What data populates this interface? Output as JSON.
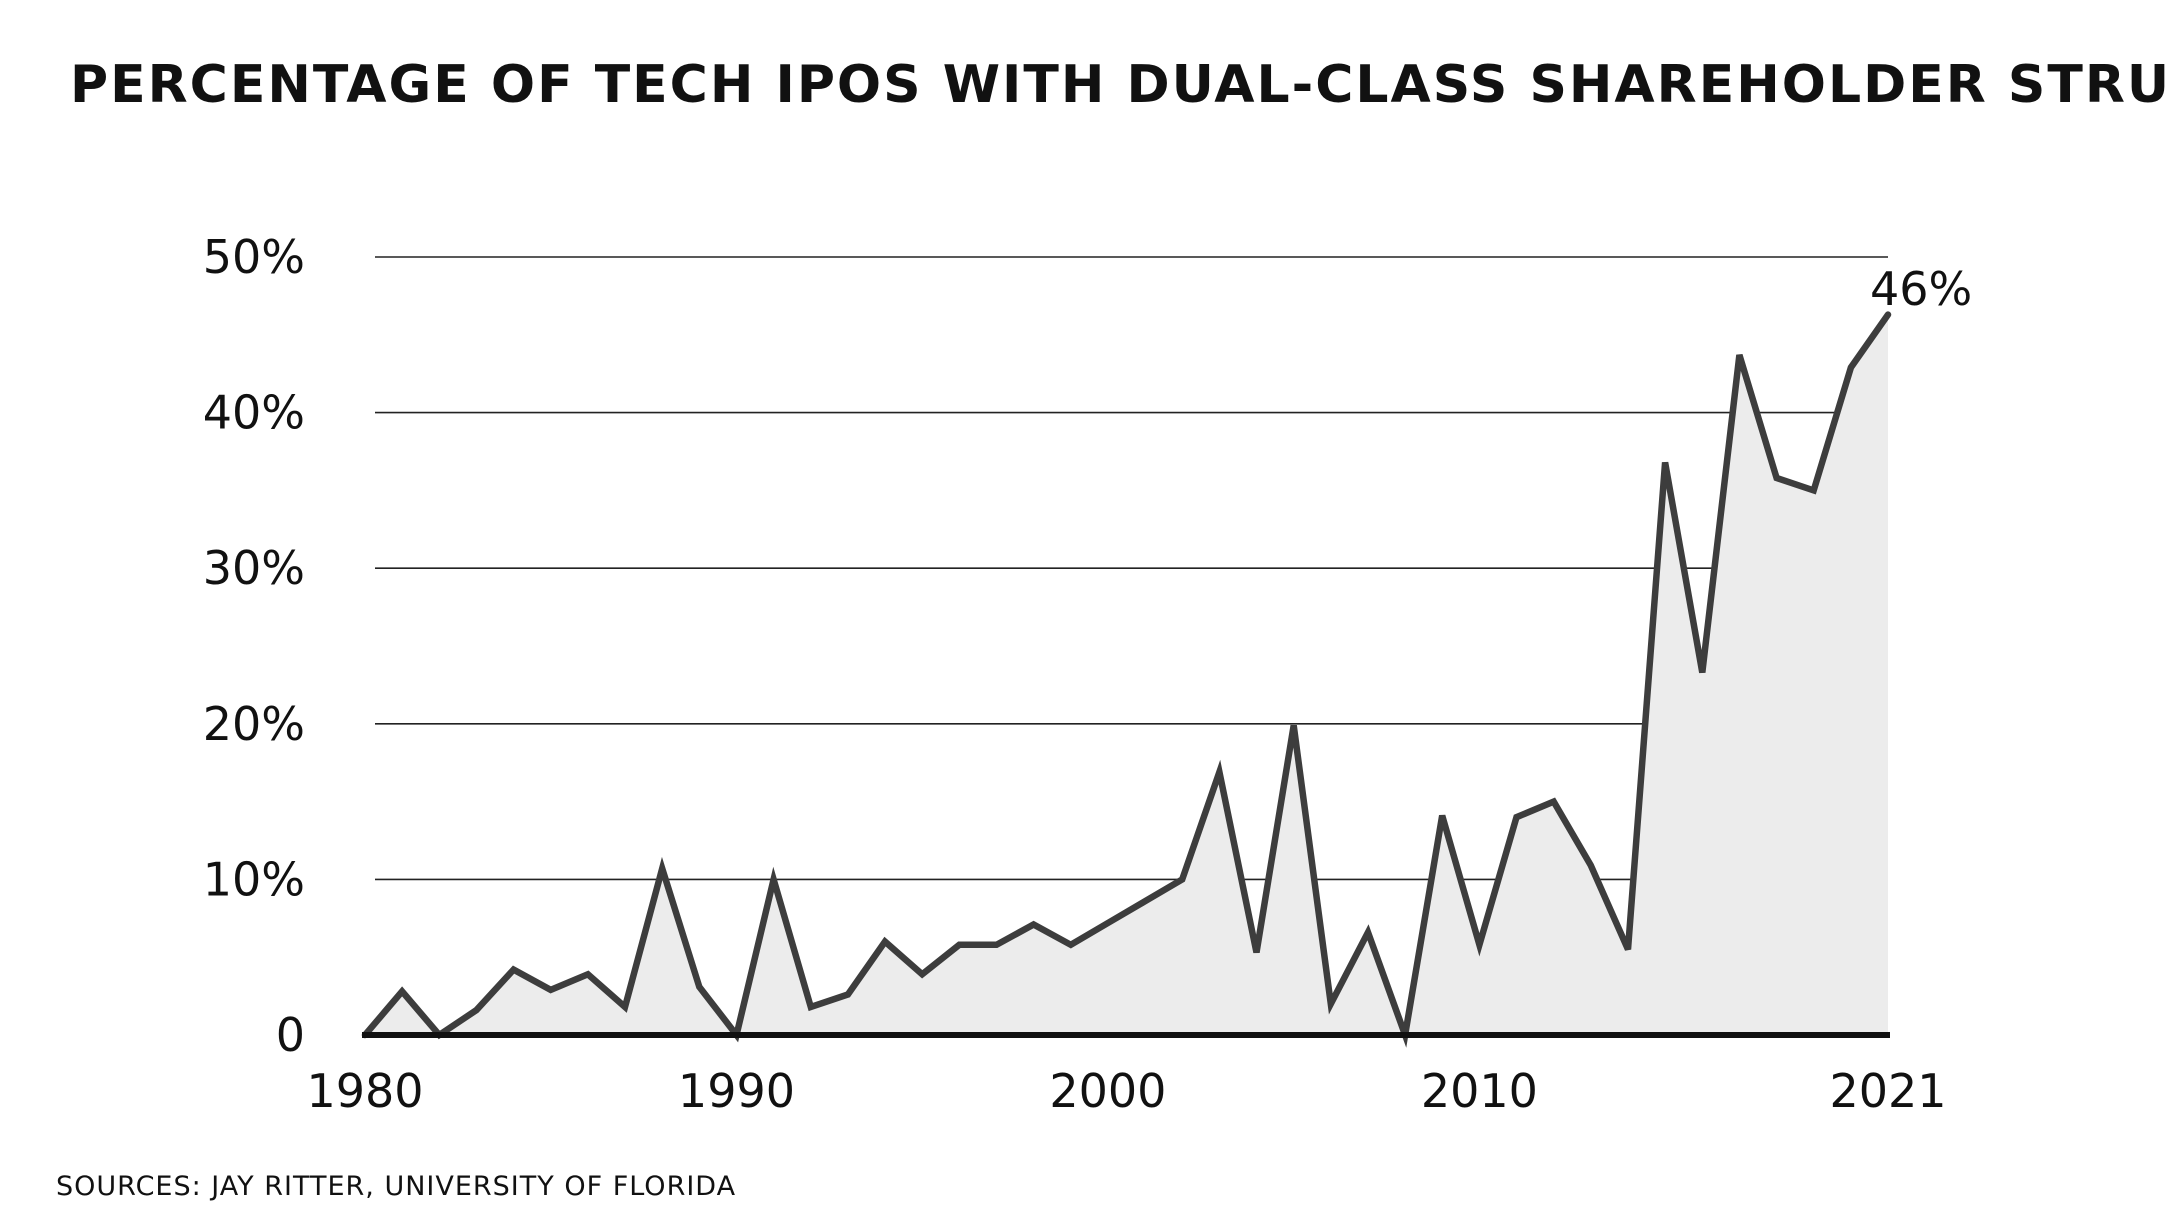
{
  "chart_data": {
    "type": "area",
    "title": "PERCENTAGE OF TECH IPOS WITH DUAL-CLASS SHAREHOLDER STRUCTURE",
    "source": "SOURCES: JAY RITTER, UNIVERSITY OF FLORIDA",
    "xlabel": "",
    "ylabel": "",
    "x": [
      1980,
      1981,
      1982,
      1983,
      1984,
      1985,
      1986,
      1987,
      1988,
      1989,
      1990,
      1991,
      1992,
      1993,
      1994,
      1995,
      1996,
      1997,
      1998,
      1999,
      2000,
      2001,
      2002,
      2003,
      2004,
      2005,
      2006,
      2007,
      2008,
      2009,
      2010,
      2011,
      2012,
      2013,
      2014,
      2015,
      2016,
      2017,
      2018,
      2019,
      2020,
      2021
    ],
    "values": [
      0,
      2.8,
      0,
      1.6,
      4.2,
      2.9,
      3.9,
      1.8,
      10.7,
      3.1,
      0,
      10,
      1.8,
      2.6,
      6,
      3.9,
      5.8,
      5.8,
      7.1,
      5.8,
      7.2,
      8.6,
      10,
      16.9,
      5.3,
      19.9,
      2,
      6.6,
      0,
      14.1,
      5.8,
      14,
      15,
      10.9,
      5.5,
      36.8,
      23.3,
      43.7,
      35.8,
      35,
      42.9,
      46.3
    ],
    "xticks": [
      "1980",
      "1990",
      "2000",
      "2010",
      "2021"
    ],
    "yticks": [
      "0",
      "10%",
      "20%",
      "30%",
      "40%",
      "50%"
    ],
    "ylim": [
      0,
      50
    ],
    "xlim": [
      1980,
      2021
    ],
    "grid": true,
    "annotation": "46%",
    "colors": {
      "line": "#3d3d3d",
      "fill": "#ececec",
      "grid": "#222222",
      "baseline": "#111111"
    }
  }
}
